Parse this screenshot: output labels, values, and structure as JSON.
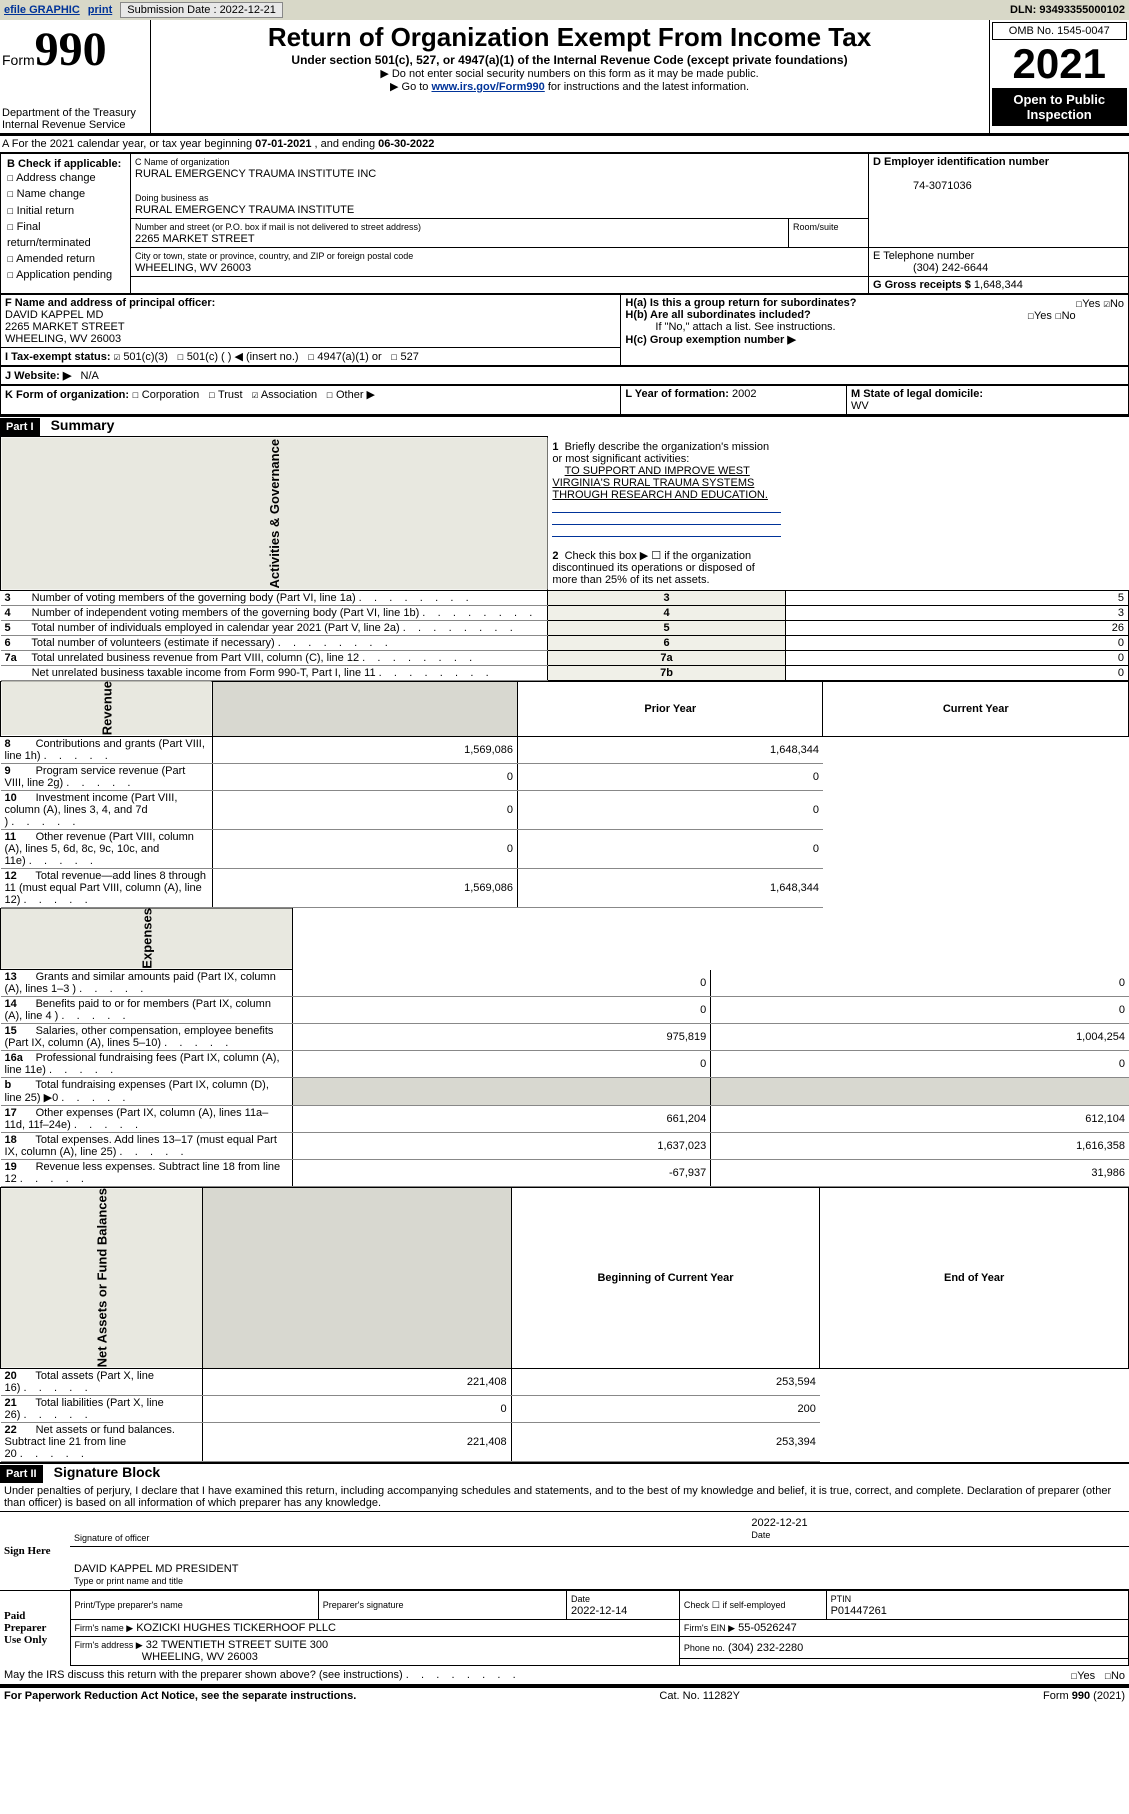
{
  "topbar": {
    "efile": "efile GRAPHIC",
    "print": "print",
    "sub_label": "Submission Date : 2022-12-21",
    "dln": "DLN: 93493355000102"
  },
  "header": {
    "form_prefix": "Form",
    "form_number": "990",
    "dept": "Department of the Treasury\nInternal Revenue Service",
    "title": "Return of Organization Exempt From Income Tax",
    "subtitle": "Under section 501(c), 527, or 4947(a)(1) of the Internal Revenue Code (except private foundations)",
    "line1": "▶ Do not enter social security numbers on this form as it may be made public.",
    "line2_pre": "▶ Go to ",
    "line2_link": "www.irs.gov/Form990",
    "line2_post": " for instructions and the latest information.",
    "omb": "OMB No. 1545-0047",
    "year": "2021",
    "inspection": "Open to Public Inspection"
  },
  "period": {
    "text_a": "A For the 2021 calendar year, or tax year beginning ",
    "begin": "07-01-2021",
    "text_b": "  , and ending ",
    "end": "06-30-2022"
  },
  "sectionB": {
    "label": "B Check if applicable:",
    "items": [
      "Address change",
      "Name change",
      "Initial return",
      "Final return/terminated",
      "Amended return",
      "Application pending"
    ]
  },
  "sectionC": {
    "name_label": "C Name of organization",
    "name": "RURAL EMERGENCY TRAUMA INSTITUTE INC",
    "dba_label": "Doing business as",
    "dba": "RURAL EMERGENCY TRAUMA INSTITUTE",
    "addr_label": "Number and street (or P.O. box if mail is not delivered to street address)",
    "addr": "2265 MARKET STREET",
    "room_label": "Room/suite",
    "city_label": "City or town, state or province, country, and ZIP or foreign postal code",
    "city": "WHEELING, WV  26003"
  },
  "sectionD": {
    "label": "D Employer identification number",
    "val": "74-3071036"
  },
  "sectionE": {
    "label": "E Telephone number",
    "val": "(304) 242-6644"
  },
  "sectionG": {
    "label": "G Gross receipts $ ",
    "val": "1,648,344"
  },
  "sectionF": {
    "label": "F Name and address of principal officer:",
    "name": "DAVID KAPPEL MD",
    "addr1": "2265 MARKET STREET",
    "addr2": "WHEELING, WV  26003"
  },
  "sectionH": {
    "ha": "H(a)  Is this a group return for subordinates?",
    "hb": "H(b)  Are all subordinates included?",
    "hnote": "If \"No,\" attach a list. See instructions.",
    "hc": "H(c)  Group exemption number ▶",
    "yes": "Yes",
    "no": "No"
  },
  "sectionI": {
    "label": "I   Tax-exempt status:",
    "opts": [
      "501(c)(3)",
      "501(c) (  ) ◀ (insert no.)",
      "4947(a)(1) or",
      "527"
    ]
  },
  "sectionJ": {
    "label": "J   Website: ▶",
    "val": "N/A"
  },
  "sectionK": {
    "label": "K Form of organization:",
    "opts": [
      "Corporation",
      "Trust",
      "Association",
      "Other ▶"
    ]
  },
  "sectionL": {
    "label": "L Year of formation:",
    "val": "2002"
  },
  "sectionM": {
    "label": "M State of legal domicile:",
    "val": "WV"
  },
  "part1": {
    "header": "Part I",
    "title": "Summary",
    "mission_label": "Briefly describe the organization's mission or most significant activities:",
    "mission": "TO SUPPORT AND IMPROVE WEST VIRGINIA'S RURAL TRAUMA SYSTEMS THROUGH RESEARCH AND EDUCATION.",
    "line2": "Check this box ▶ ☐  if the organization discontinued its operations or disposed of more than 25% of its net assets.",
    "ag_label": "Activities & Governance",
    "rev_label": "Revenue",
    "exp_label": "Expenses",
    "na_label": "Net Assets or Fund Balances",
    "prior": "Prior Year",
    "current": "Current Year",
    "boy": "Beginning of Current Year",
    "eoy": "End of Year",
    "rows_ag": [
      {
        "n": "3",
        "t": "Number of voting members of the governing body (Part VI, line 1a)",
        "k": "3",
        "v": "5"
      },
      {
        "n": "4",
        "t": "Number of independent voting members of the governing body (Part VI, line 1b)",
        "k": "4",
        "v": "3"
      },
      {
        "n": "5",
        "t": "Total number of individuals employed in calendar year 2021 (Part V, line 2a)",
        "k": "5",
        "v": "26"
      },
      {
        "n": "6",
        "t": "Total number of volunteers (estimate if necessary)",
        "k": "6",
        "v": "0"
      },
      {
        "n": "7a",
        "t": "Total unrelated business revenue from Part VIII, column (C), line 12",
        "k": "7a",
        "v": "0"
      },
      {
        "n": "",
        "t": "Net unrelated business taxable income from Form 990-T, Part I, line 11",
        "k": "7b",
        "v": "0"
      }
    ],
    "rows_rev": [
      {
        "n": "8",
        "t": "Contributions and grants (Part VIII, line 1h)",
        "p": "1,569,086",
        "c": "1,648,344"
      },
      {
        "n": "9",
        "t": "Program service revenue (Part VIII, line 2g)",
        "p": "0",
        "c": "0"
      },
      {
        "n": "10",
        "t": "Investment income (Part VIII, column (A), lines 3, 4, and 7d )",
        "p": "0",
        "c": "0"
      },
      {
        "n": "11",
        "t": "Other revenue (Part VIII, column (A), lines 5, 6d, 8c, 9c, 10c, and 11e)",
        "p": "0",
        "c": "0"
      },
      {
        "n": "12",
        "t": "Total revenue—add lines 8 through 11 (must equal Part VIII, column (A), line 12)",
        "p": "1,569,086",
        "c": "1,648,344"
      }
    ],
    "rows_exp": [
      {
        "n": "13",
        "t": "Grants and similar amounts paid (Part IX, column (A), lines 1–3 )",
        "p": "0",
        "c": "0"
      },
      {
        "n": "14",
        "t": "Benefits paid to or for members (Part IX, column (A), line 4 )",
        "p": "0",
        "c": "0"
      },
      {
        "n": "15",
        "t": "Salaries, other compensation, employee benefits (Part IX, column (A), lines 5–10)",
        "p": "975,819",
        "c": "1,004,254"
      },
      {
        "n": "16a",
        "t": "Professional fundraising fees (Part IX, column (A), line 11e)",
        "p": "0",
        "c": "0"
      },
      {
        "n": "b",
        "t": "Total fundraising expenses (Part IX, column (D), line 25) ▶0",
        "p": "",
        "c": "",
        "shade": true
      },
      {
        "n": "17",
        "t": "Other expenses (Part IX, column (A), lines 11a–11d, 11f–24e)",
        "p": "661,204",
        "c": "612,104"
      },
      {
        "n": "18",
        "t": "Total expenses. Add lines 13–17 (must equal Part IX, column (A), line 25)",
        "p": "1,637,023",
        "c": "1,616,358"
      },
      {
        "n": "19",
        "t": "Revenue less expenses. Subtract line 18 from line 12",
        "p": "-67,937",
        "c": "31,986"
      }
    ],
    "rows_na": [
      {
        "n": "20",
        "t": "Total assets (Part X, line 16)",
        "p": "221,408",
        "c": "253,594"
      },
      {
        "n": "21",
        "t": "Total liabilities (Part X, line 26)",
        "p": "0",
        "c": "200"
      },
      {
        "n": "22",
        "t": "Net assets or fund balances. Subtract line 21 from line 20",
        "p": "221,408",
        "c": "253,394"
      }
    ]
  },
  "part2": {
    "header": "Part II",
    "title": "Signature Block",
    "decl": "Under penalties of perjury, I declare that I have examined this return, including accompanying schedules and statements, and to the best of my knowledge and belief, it is true, correct, and complete. Declaration of preparer (other than officer) is based on all information of which preparer has any knowledge.",
    "sign_here": "Sign Here",
    "sig_officer": "Signature of officer",
    "date_label": "Date",
    "sig_date": "2022-12-21",
    "officer_name": "DAVID KAPPEL MD  PRESIDENT",
    "officer_sub": "Type or print name and title",
    "paid": "Paid Preparer Use Only",
    "prep_name_label": "Print/Type preparer's name",
    "prep_sig_label": "Preparer's signature",
    "prep_date_label": "Date",
    "prep_date": "2022-12-14",
    "check_if": "Check ☐ if self-employed",
    "ptin_label": "PTIN",
    "ptin": "P01447261",
    "firm_name_label": "Firm's name    ▶",
    "firm_name": "KOZICKI HUGHES TICKERHOOF PLLC",
    "firm_ein_label": "Firm's EIN ▶",
    "firm_ein": "55-0526247",
    "firm_addr_label": "Firm's address ▶",
    "firm_addr": "32 TWENTIETH STREET SUITE 300",
    "firm_city": "WHEELING, WV  26003",
    "phone_label": "Phone no.",
    "phone": "(304) 232-2280",
    "discuss": "May the IRS discuss this return with the preparer shown above? (see instructions)"
  },
  "footer": {
    "left": "For Paperwork Reduction Act Notice, see the separate instructions.",
    "mid": "Cat. No. 11282Y",
    "right": "Form 990 (2021)"
  }
}
